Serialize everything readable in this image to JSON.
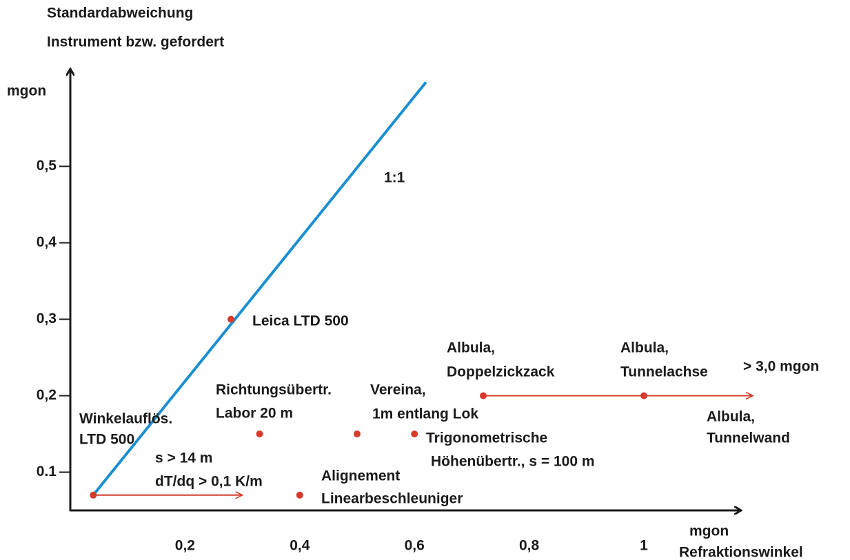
{
  "chart_data": {
    "type": "scatter",
    "y_label": [
      "Standardabweichung",
      "Instrument bzw. gefordert"
    ],
    "y_unit": "mgon",
    "x_label": [
      "mgon",
      "Refraktionswinkel"
    ],
    "xlim": [
      0,
      1.17
    ],
    "ylim": [
      0.05,
      0.63
    ],
    "xticks": [
      {
        "value": 0.2,
        "label": "0,2"
      },
      {
        "value": 0.4,
        "label": "0,4"
      },
      {
        "value": 0.6,
        "label": "0,6"
      },
      {
        "value": 0.8,
        "label": "0,8"
      },
      1
    ],
    "yticks": [
      {
        "value": 0.1,
        "label": "0.1"
      },
      {
        "value": 0.2,
        "label": "0,2"
      },
      {
        "value": 0.3,
        "label": "0,3"
      },
      {
        "value": 0.4,
        "label": "0,4"
      },
      {
        "value": 0.5,
        "label": "0,5"
      }
    ],
    "points": {
      "x": [
        0.28,
        0.04,
        0.33,
        0.5,
        0.6,
        0.4,
        0.72,
        1.0
      ],
      "values": [
        0.3,
        0.07,
        0.15,
        0.15,
        0.15,
        0.07,
        0.2,
        0.2
      ],
      "color": "#d63a2a"
    },
    "line": {
      "x": [
        0.04,
        0.62
      ],
      "values": [
        0.07,
        0.61
      ],
      "color": "#1a8fd0"
    },
    "arrows": [
      {
        "x": [
          0.04,
          0.3
        ],
        "y": 0.07
      },
      {
        "x": [
          0.72,
          1.19
        ],
        "y": 0.2
      }
    ],
    "arrow_color": "#d63a2a",
    "annotations": [
      [
        "1:1"
      ],
      [
        "Leica LTD 500"
      ],
      [
        "Winkelauflös.",
        "LTD 500"
      ],
      [
        "s > 14 m",
        "dT/dq > 0,1 K/m"
      ],
      [
        "Richtungsübertr.",
        "Labor 20 m"
      ],
      [
        "Vereina,",
        "1m entlang Lok"
      ],
      [
        "Trigonometrische",
        "Höhenübertr., s = 100 m"
      ],
      [
        "Alignement",
        "Linearbeschleuniger"
      ],
      [
        "Albula,",
        "Doppelzickzack"
      ],
      [
        "Albula,",
        "Tunnelachse"
      ],
      [
        "> 3,0 mgon"
      ],
      [
        "Albula,",
        "Tunnelwand"
      ]
    ]
  }
}
